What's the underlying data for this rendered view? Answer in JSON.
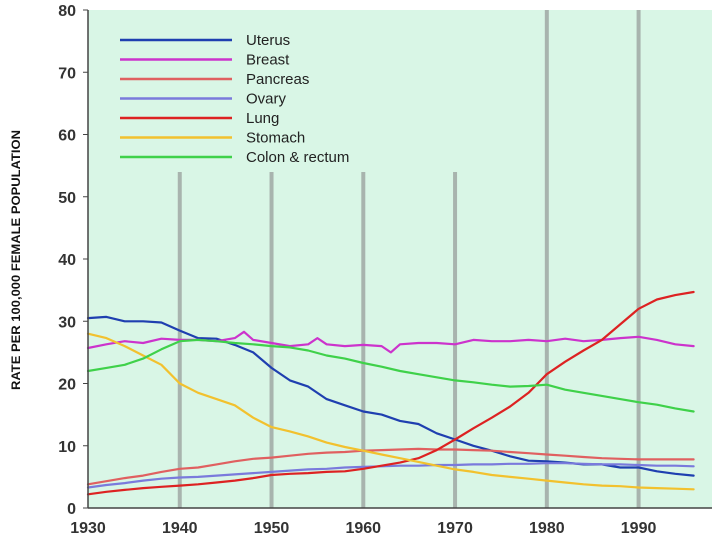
{
  "chart_data": {
    "type": "line",
    "title": "",
    "xlabel": "",
    "ylabel": "RATE PER 100,000 FEMALE POPULATION",
    "xlim": [
      1930,
      1998
    ],
    "ylim": [
      0,
      80
    ],
    "xticks": [
      1930,
      1940,
      1950,
      1960,
      1970,
      1980,
      1990
    ],
    "yticks": [
      0,
      10,
      20,
      30,
      40,
      50,
      60,
      70,
      80
    ],
    "grid": "vertical lines at decades 1940-1990",
    "legend_position": "top-left",
    "background_color": "#d9f6e6",
    "series": [
      {
        "name": "Uterus",
        "color": "#1f3fb0",
        "x": [
          1930,
          1932,
          1934,
          1936,
          1938,
          1940,
          1942,
          1944,
          1946,
          1948,
          1950,
          1952,
          1954,
          1956,
          1958,
          1960,
          1962,
          1964,
          1966,
          1968,
          1970,
          1972,
          1974,
          1976,
          1978,
          1980,
          1982,
          1984,
          1986,
          1988,
          1990,
          1992,
          1994,
          1996
        ],
        "y": [
          30.5,
          30.7,
          30.0,
          30.0,
          29.8,
          28.5,
          27.3,
          27.2,
          26.2,
          25.0,
          22.5,
          20.5,
          19.5,
          17.5,
          16.5,
          15.5,
          15.0,
          14.0,
          13.5,
          12.0,
          11.0,
          10.0,
          9.2,
          8.3,
          7.6,
          7.5,
          7.3,
          7.0,
          7.0,
          6.5,
          6.5,
          5.9,
          5.5,
          5.2
        ]
      },
      {
        "name": "Breast",
        "color": "#cc33cc",
        "x": [
          1930,
          1932,
          1934,
          1936,
          1938,
          1940,
          1942,
          1944,
          1946,
          1947,
          1948,
          1950,
          1952,
          1954,
          1955,
          1956,
          1958,
          1960,
          1962,
          1963,
          1964,
          1966,
          1968,
          1970,
          1972,
          1974,
          1976,
          1978,
          1980,
          1982,
          1984,
          1986,
          1988,
          1990,
          1992,
          1994,
          1996
        ],
        "y": [
          25.7,
          26.3,
          26.8,
          26.5,
          27.2,
          27.0,
          27.0,
          26.8,
          27.3,
          28.3,
          27.0,
          26.5,
          26.0,
          26.3,
          27.3,
          26.3,
          26.0,
          26.2,
          26.0,
          25.0,
          26.3,
          26.5,
          26.5,
          26.3,
          27.0,
          26.8,
          26.8,
          27.0,
          26.8,
          27.2,
          26.8,
          27.0,
          27.3,
          27.5,
          27.0,
          26.3,
          26.0
        ]
      },
      {
        "name": "Pancreas",
        "color": "#e06060",
        "x": [
          1930,
          1932,
          1934,
          1936,
          1938,
          1940,
          1942,
          1944,
          1946,
          1948,
          1950,
          1952,
          1954,
          1956,
          1958,
          1960,
          1962,
          1964,
          1966,
          1968,
          1970,
          1972,
          1974,
          1976,
          1978,
          1980,
          1982,
          1984,
          1986,
          1988,
          1990,
          1992,
          1994,
          1996
        ],
        "y": [
          3.8,
          4.3,
          4.8,
          5.2,
          5.8,
          6.3,
          6.5,
          7.0,
          7.5,
          7.9,
          8.1,
          8.4,
          8.7,
          8.9,
          9.0,
          9.2,
          9.3,
          9.4,
          9.5,
          9.4,
          9.4,
          9.3,
          9.2,
          9.0,
          8.8,
          8.6,
          8.4,
          8.2,
          8.0,
          7.9,
          7.8,
          7.8,
          7.8,
          7.8
        ]
      },
      {
        "name": "Ovary",
        "color": "#7a7adc",
        "x": [
          1930,
          1932,
          1934,
          1936,
          1938,
          1940,
          1942,
          1944,
          1946,
          1948,
          1950,
          1952,
          1954,
          1956,
          1958,
          1960,
          1962,
          1964,
          1966,
          1968,
          1970,
          1972,
          1974,
          1976,
          1978,
          1980,
          1982,
          1984,
          1986,
          1988,
          1990,
          1992,
          1994,
          1996
        ],
        "y": [
          3.3,
          3.7,
          4.0,
          4.4,
          4.7,
          4.9,
          5.0,
          5.2,
          5.4,
          5.6,
          5.8,
          6.0,
          6.2,
          6.3,
          6.5,
          6.6,
          6.7,
          6.8,
          6.8,
          6.9,
          6.9,
          7.0,
          7.0,
          7.1,
          7.1,
          7.2,
          7.2,
          7.1,
          7.0,
          7.0,
          6.9,
          6.8,
          6.8,
          6.7
        ]
      },
      {
        "name": "Lung",
        "color": "#dd2222",
        "x": [
          1930,
          1932,
          1934,
          1936,
          1938,
          1940,
          1942,
          1944,
          1946,
          1948,
          1950,
          1952,
          1954,
          1956,
          1958,
          1960,
          1962,
          1964,
          1966,
          1968,
          1970,
          1972,
          1974,
          1976,
          1978,
          1980,
          1982,
          1984,
          1986,
          1988,
          1990,
          1992,
          1994,
          1996
        ],
        "y": [
          2.2,
          2.6,
          2.9,
          3.2,
          3.4,
          3.6,
          3.8,
          4.1,
          4.4,
          4.8,
          5.3,
          5.5,
          5.6,
          5.8,
          5.9,
          6.3,
          6.8,
          7.3,
          8.0,
          9.3,
          11.0,
          12.8,
          14.5,
          16.3,
          18.5,
          21.5,
          23.5,
          25.3,
          27.0,
          29.5,
          32.0,
          33.5,
          34.2,
          34.7
        ]
      },
      {
        "name": "Stomach",
        "color": "#f2c12e",
        "x": [
          1930,
          1932,
          1934,
          1936,
          1938,
          1940,
          1942,
          1944,
          1946,
          1948,
          1950,
          1952,
          1954,
          1956,
          1958,
          1960,
          1962,
          1964,
          1966,
          1968,
          1970,
          1972,
          1974,
          1976,
          1978,
          1980,
          1982,
          1984,
          1986,
          1988,
          1990,
          1992,
          1994,
          1996
        ],
        "y": [
          28.0,
          27.3,
          26.0,
          24.5,
          23.0,
          20.0,
          18.5,
          17.5,
          16.5,
          14.5,
          13.0,
          12.3,
          11.5,
          10.5,
          9.8,
          9.2,
          8.6,
          8.0,
          7.4,
          6.8,
          6.2,
          5.8,
          5.3,
          5.0,
          4.7,
          4.4,
          4.1,
          3.8,
          3.6,
          3.5,
          3.3,
          3.2,
          3.1,
          3.0
        ]
      },
      {
        "name": "Colon & rectum",
        "color": "#3fd14a",
        "x": [
          1930,
          1932,
          1934,
          1936,
          1938,
          1940,
          1942,
          1944,
          1946,
          1948,
          1950,
          1952,
          1954,
          1956,
          1958,
          1960,
          1962,
          1964,
          1966,
          1968,
          1970,
          1972,
          1974,
          1976,
          1978,
          1980,
          1982,
          1984,
          1986,
          1988,
          1990,
          1992,
          1994,
          1996
        ],
        "y": [
          22.0,
          22.5,
          23.0,
          24.0,
          25.5,
          26.8,
          27.0,
          26.8,
          26.5,
          26.3,
          26.0,
          25.8,
          25.3,
          24.5,
          24.0,
          23.3,
          22.7,
          22.0,
          21.5,
          21.0,
          20.5,
          20.2,
          19.8,
          19.5,
          19.6,
          19.8,
          19.0,
          18.5,
          18.0,
          17.5,
          17.0,
          16.6,
          16.0,
          15.5
        ]
      }
    ]
  }
}
